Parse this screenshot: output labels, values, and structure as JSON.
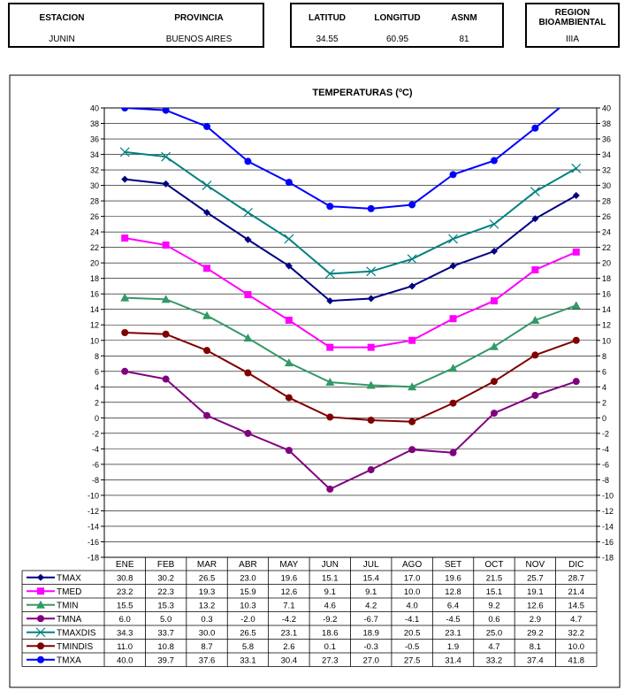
{
  "header": {
    "estacion_label": "ESTACION",
    "provincia_label": "PROVINCIA",
    "estacion_value": "JUNIN",
    "provincia_value": "BUENOS AIRES",
    "latitud_label": "LATITUD",
    "longitud_label": "LONGITUD",
    "asnm_label": "ASNM",
    "latitud_value": "34.55",
    "longitud_value": "60.95",
    "asnm_value": "81",
    "region_label": "REGION BIOAMBIENTAL",
    "region_value": "IIIA"
  },
  "colors": {
    "TMAX": "#000080",
    "TMED": "#ff00ff",
    "TMIN": "#339966",
    "TMNA": "#800080",
    "TMAXDIS": "#008080",
    "TMINDIS": "#800000",
    "TMXA": "#0000ff"
  },
  "chart_data": {
    "type": "line",
    "title": "TEMPERATURAS (ºC)",
    "categories": [
      "ENE",
      "FEB",
      "MAR",
      "ABR",
      "MAY",
      "JUN",
      "JUL",
      "AGO",
      "SET",
      "OCT",
      "NOV",
      "DIC"
    ],
    "ylim": [
      -18,
      40
    ],
    "ytick_step": 2,
    "grid": true,
    "legend": "data-table-below",
    "series": [
      {
        "name": "TMAX",
        "marker": "diamond",
        "values": [
          30.8,
          30.2,
          26.5,
          23.0,
          19.6,
          15.1,
          15.4,
          17.0,
          19.6,
          21.5,
          25.7,
          28.7
        ]
      },
      {
        "name": "TMED",
        "marker": "square",
        "values": [
          23.2,
          22.3,
          19.3,
          15.9,
          12.6,
          9.1,
          9.1,
          10.0,
          12.8,
          15.1,
          19.1,
          21.4
        ]
      },
      {
        "name": "TMIN",
        "marker": "triangle",
        "values": [
          15.5,
          15.3,
          13.2,
          10.3,
          7.1,
          4.6,
          4.2,
          4.0,
          6.4,
          9.2,
          12.6,
          14.5
        ]
      },
      {
        "name": "TMNA",
        "marker": "circle",
        "values": [
          6.0,
          5.0,
          0.3,
          -2.0,
          -4.2,
          -9.2,
          -6.7,
          -4.1,
          -4.5,
          0.6,
          2.9,
          4.7
        ]
      },
      {
        "name": "TMAXDIS",
        "marker": "x",
        "values": [
          34.3,
          33.7,
          30.0,
          26.5,
          23.1,
          18.6,
          18.9,
          20.5,
          23.1,
          25.0,
          29.2,
          32.2
        ]
      },
      {
        "name": "TMINDIS",
        "marker": "circle",
        "values": [
          11.0,
          10.8,
          8.7,
          5.8,
          2.6,
          0.1,
          -0.3,
          -0.5,
          1.9,
          4.7,
          8.1,
          10.0
        ]
      },
      {
        "name": "TMXA",
        "marker": "circle",
        "values": [
          40.0,
          39.7,
          37.6,
          33.1,
          30.4,
          27.3,
          27.0,
          27.5,
          31.4,
          33.2,
          37.4,
          41.8
        ]
      }
    ]
  }
}
